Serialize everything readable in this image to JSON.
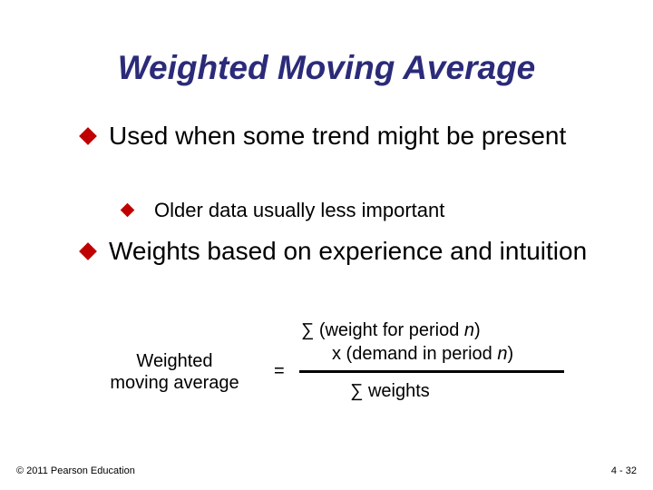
{
  "title": "Weighted Moving Average",
  "bullets": [
    {
      "text": "Used when some trend might be present",
      "sub_bullets": [
        "Older data usually less important"
      ]
    },
    {
      "text": "Weights based on experience and intuition",
      "sub_bullets": []
    }
  ],
  "formula": {
    "left_label": [
      "Weighted",
      "moving average"
    ],
    "equals": "=",
    "numerator": [
      [
        "∑ (weight for period ",
        "n",
        ")"
      ],
      [
        "x (demand in period ",
        "n",
        ")"
      ]
    ],
    "denominator": "∑ weights"
  },
  "footer": {
    "copyright": "© 2011 Pearson Education",
    "page": "4 - 32"
  }
}
